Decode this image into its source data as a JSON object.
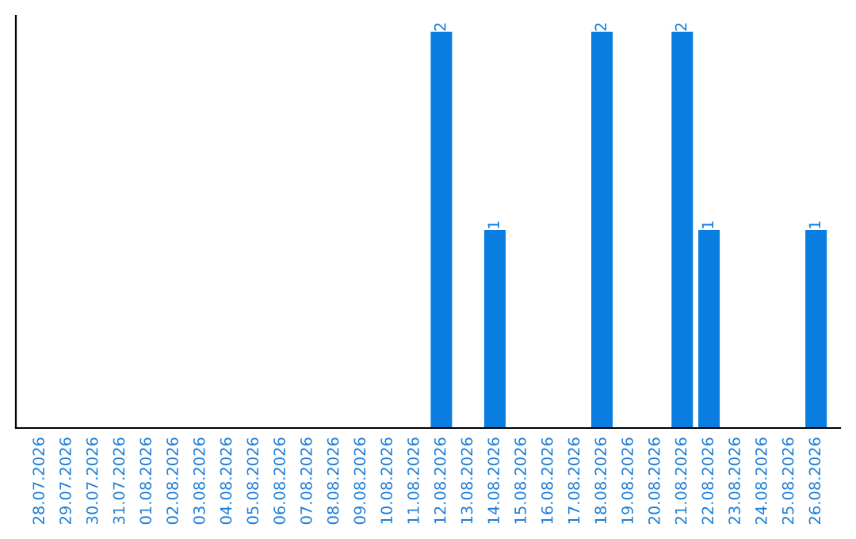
{
  "chart_data": {
    "type": "bar",
    "categories": [
      "28.07.2026",
      "29.07.2026",
      "30.07.2026",
      "31.07.2026",
      "01.08.2026",
      "02.08.2026",
      "03.08.2026",
      "04.08.2026",
      "05.08.2026",
      "06.08.2026",
      "07.08.2026",
      "08.08.2026",
      "09.08.2026",
      "10.08.2026",
      "11.08.2026",
      "12.08.2026",
      "13.08.2026",
      "14.08.2026",
      "15.08.2026",
      "16.08.2026",
      "17.08.2026",
      "18.08.2026",
      "19.08.2026",
      "20.08.2026",
      "21.08.2026",
      "22.08.2026",
      "23.08.2026",
      "24.08.2026",
      "25.08.2026",
      "26.08.2026"
    ],
    "values": [
      null,
      null,
      null,
      null,
      null,
      null,
      null,
      null,
      null,
      null,
      null,
      null,
      null,
      null,
      null,
      2,
      null,
      1,
      null,
      null,
      null,
      2,
      null,
      null,
      2,
      1,
      null,
      null,
      null,
      1
    ],
    "data_labels": true,
    "color": "#0a7de0"
  }
}
